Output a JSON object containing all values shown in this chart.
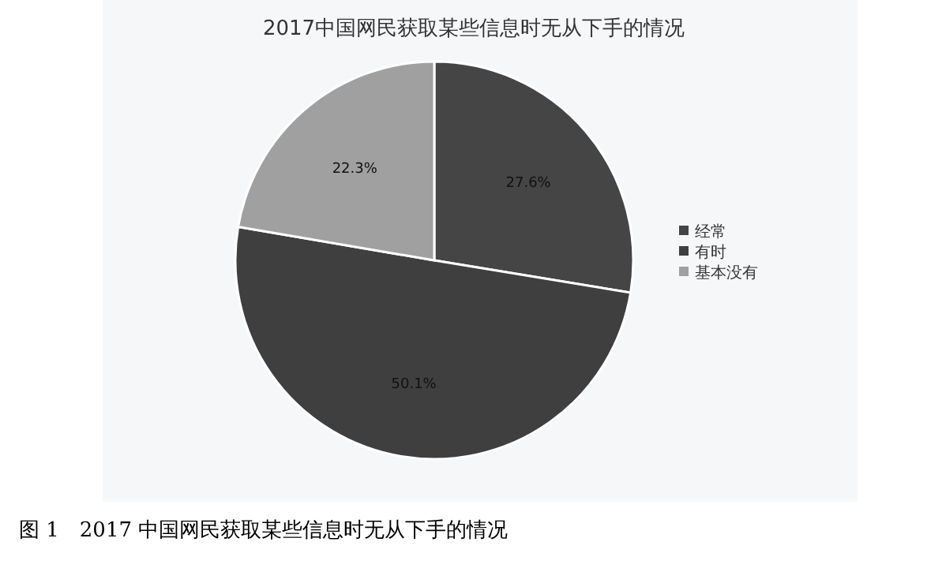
{
  "chart_data": {
    "type": "pie",
    "title": "2017中国网民获取某些信息时无从下手的情况",
    "categories": [
      "经常",
      "有时",
      "基本没有"
    ],
    "values": [
      27.6,
      50.1,
      22.3
    ],
    "value_labels": [
      "27.6%",
      "50.1%",
      "22.3%"
    ],
    "colors": [
      "#454545",
      "#3f3f3f",
      "#a0a0a0"
    ],
    "legend": "right",
    "annotations": [
      "图 1　2017 中国网民获取某些信息时无从下手的情况"
    ]
  }
}
